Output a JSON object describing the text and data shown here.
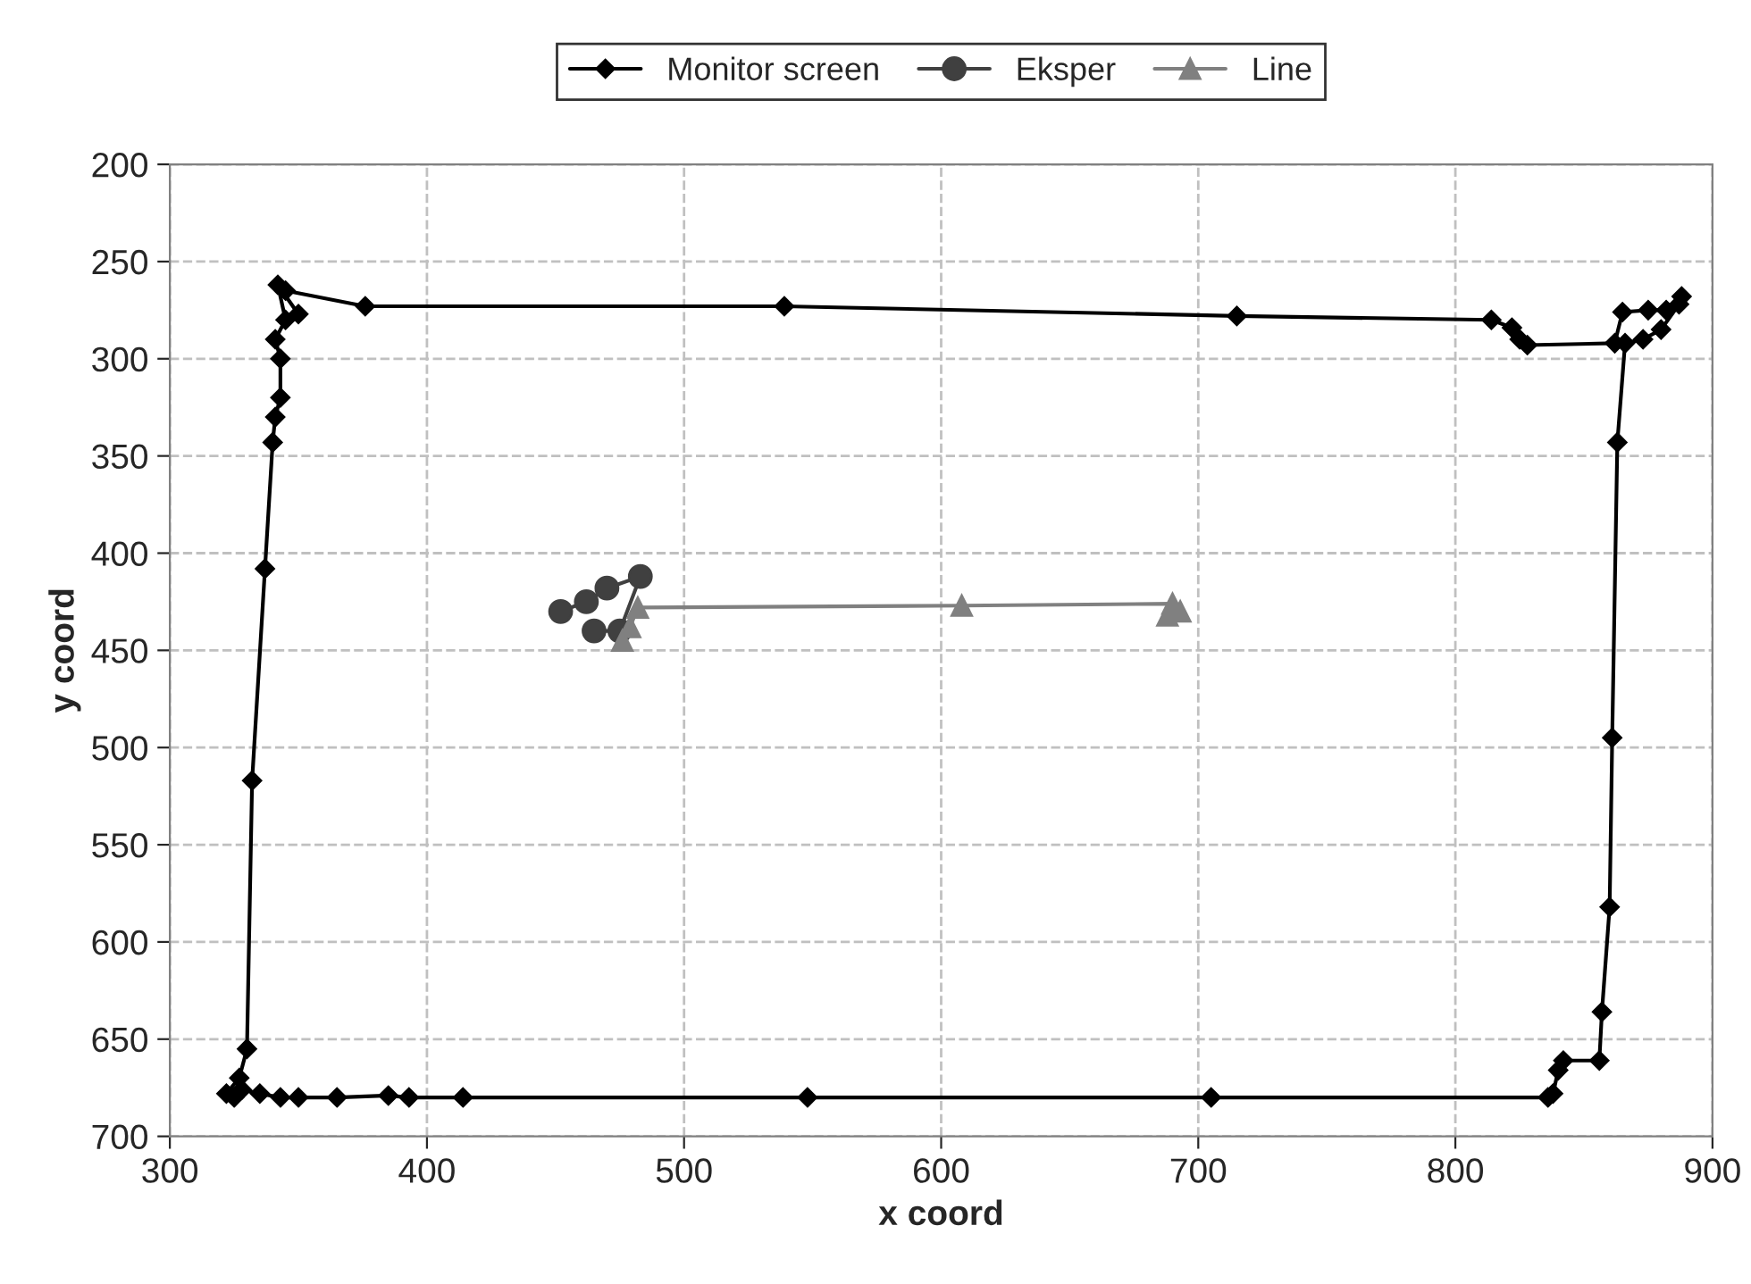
{
  "chart_data": {
    "type": "line",
    "xlabel": "x coord",
    "ylabel": "y coord",
    "xlim": [
      300,
      900
    ],
    "xticks": [
      300,
      400,
      500,
      600,
      700,
      800,
      900
    ],
    "ylim": [
      700,
      200
    ],
    "yticks": [
      200,
      250,
      300,
      350,
      400,
      450,
      500,
      550,
      600,
      650,
      700
    ],
    "grid": true,
    "legend": "top",
    "series": [
      {
        "name": "Monitor screen",
        "color": "#000000",
        "marker": "diamond",
        "x": [
          345,
          376,
          539,
          715,
          814,
          822,
          825,
          828,
          862,
          865,
          875,
          882,
          888,
          887,
          880,
          873,
          866,
          863,
          861,
          860,
          857,
          856,
          842,
          840,
          838,
          836,
          705,
          548,
          414,
          393,
          385,
          365,
          350,
          343,
          335,
          328,
          325,
          322,
          327,
          330,
          332,
          337,
          340,
          341,
          343,
          343,
          341,
          345,
          342,
          350
        ],
        "values": [
          265,
          273,
          273,
          278,
          280,
          284,
          290,
          293,
          292,
          276,
          275,
          275,
          268,
          272,
          285,
          290,
          292,
          343,
          495,
          582,
          636,
          661,
          661,
          666,
          678,
          680,
          680,
          680,
          680,
          680,
          679,
          680,
          680,
          680,
          678,
          676,
          680,
          678,
          670,
          655,
          517,
          408,
          343,
          330,
          320,
          300,
          290,
          280,
          262,
          277
        ]
      },
      {
        "name": "Eksper",
        "color": "#404040",
        "marker": "circle",
        "x": [
          452,
          462,
          470,
          483,
          475,
          465
        ],
        "values": [
          430,
          425,
          418,
          412,
          440,
          440
        ]
      },
      {
        "name": "Line",
        "color": "#808080",
        "marker": "triangle",
        "x": [
          476,
          479,
          482,
          608,
          690,
          693,
          688
        ],
        "values": [
          445,
          438,
          428,
          427,
          426,
          430,
          432
        ]
      }
    ]
  }
}
